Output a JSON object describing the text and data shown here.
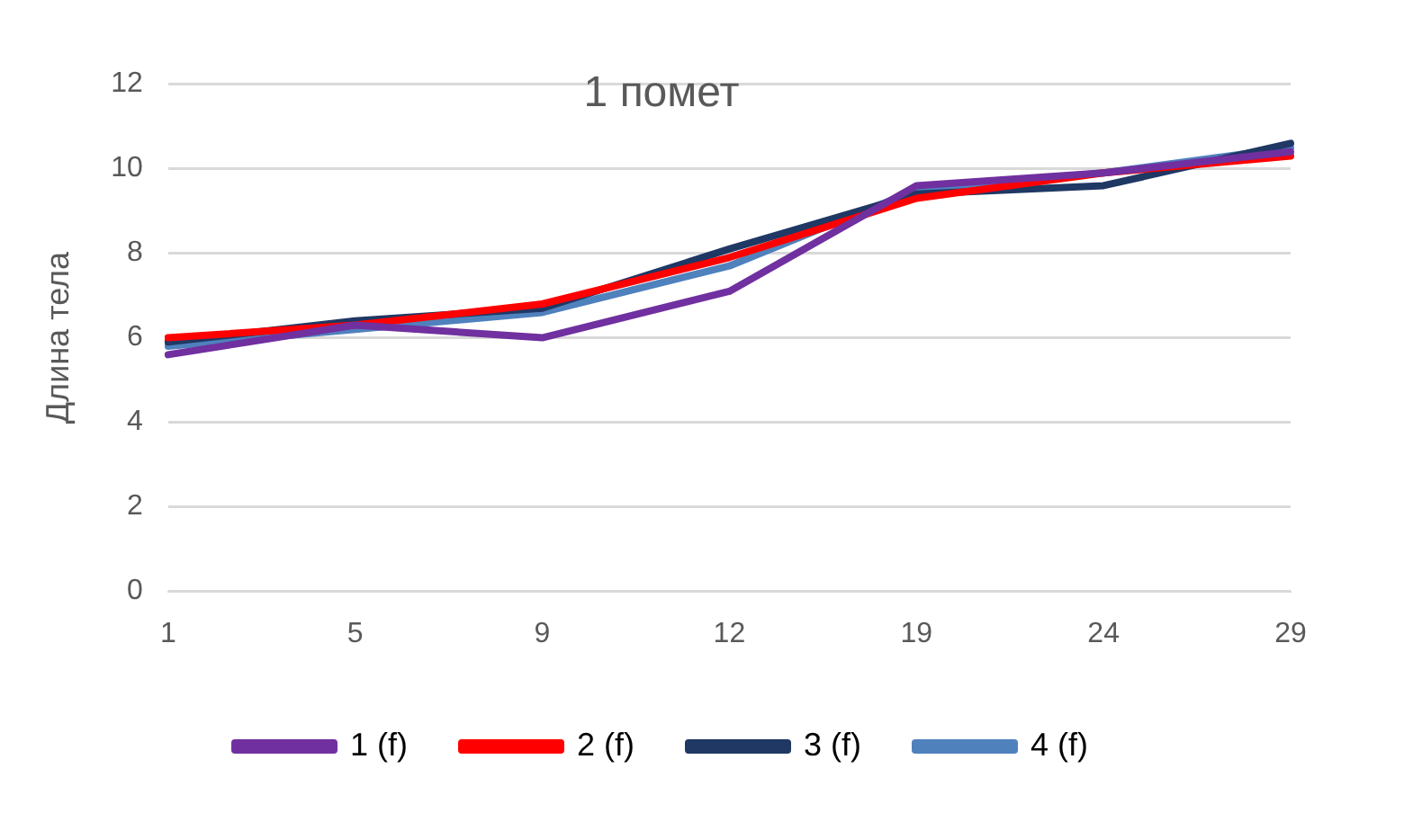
{
  "chart_data": {
    "type": "line",
    "title": "1 помет",
    "ylabel": "Длина тела",
    "categories": [
      "1",
      "5",
      "9",
      "12",
      "19",
      "24",
      "29"
    ],
    "series": [
      {
        "name": "1 (f)",
        "color": "#7030a0",
        "values": [
          5.6,
          6.3,
          6.0,
          7.1,
          9.6,
          9.9,
          10.4
        ]
      },
      {
        "name": "2 (f)",
        "color": "#ff0000",
        "values": [
          6.0,
          6.3,
          6.8,
          7.9,
          9.3,
          9.9,
          10.3
        ]
      },
      {
        "name": "3 (f)",
        "color": "#1f3864",
        "values": [
          5.9,
          6.4,
          6.7,
          8.1,
          9.4,
          9.6,
          10.6
        ]
      },
      {
        "name": "4 (f)",
        "color": "#4f81bd",
        "values": [
          5.8,
          6.2,
          6.6,
          7.7,
          9.5,
          9.9,
          10.5
        ]
      }
    ],
    "ylim": [
      0,
      12
    ],
    "yticks": [
      0,
      2,
      4,
      6,
      8,
      10,
      12
    ],
    "grid": "y",
    "legend": "bottom",
    "marker": "none",
    "line_style": "solid"
  }
}
